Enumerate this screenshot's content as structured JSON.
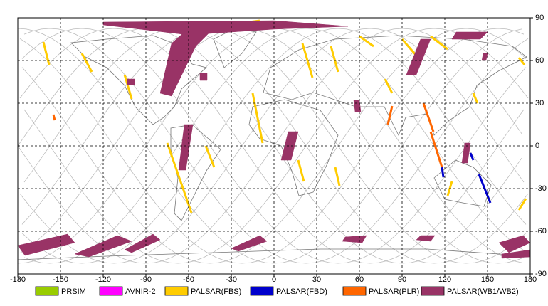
{
  "chart_data": {
    "type": "map",
    "xlim": [
      -180,
      180
    ],
    "ylim": [
      -90,
      90
    ],
    "xticks": [
      -180,
      -150,
      -120,
      -90,
      -60,
      -30,
      0,
      30,
      60,
      90,
      120,
      150,
      180
    ],
    "yticks": [
      -90,
      -60,
      -30,
      0,
      30,
      60,
      90
    ],
    "grid": true,
    "series": [
      {
        "name": "PRSIM",
        "color": "#99cc00"
      },
      {
        "name": "AVNIR-2",
        "color": "#ff00ff"
      },
      {
        "name": "PALSAR(FBS)",
        "color": "#ffcc00",
        "tracks": [
          {
            "lon": [
              -55,
              -10
            ],
            "lat": [
              82,
              88
            ]
          },
          {
            "lon": [
              -70,
              -15
            ],
            "lat": [
              80,
              87
            ]
          },
          {
            "lon": [
              -162,
              -158
            ],
            "lat": [
              73,
              57
            ]
          },
          {
            "lon": [
              -135,
              -128
            ],
            "lat": [
              65,
              52
            ]
          },
          {
            "lon": [
              -105,
              -100
            ],
            "lat": [
              50,
              33
            ]
          },
          {
            "lon": [
              -75,
              -58
            ],
            "lat": [
              2,
              -47
            ]
          },
          {
            "lon": [
              -48,
              -42
            ],
            "lat": [
              0,
              -15
            ]
          },
          {
            "lon": [
              -15,
              -8
            ],
            "lat": [
              37,
              2
            ]
          },
          {
            "lon": [
              20,
              27
            ],
            "lat": [
              72,
              48
            ]
          },
          {
            "lon": [
              40,
              45
            ],
            "lat": [
              70,
              52
            ]
          },
          {
            "lon": [
              43,
              46
            ],
            "lat": [
              -15,
              -28
            ]
          },
          {
            "lon": [
              17,
              21
            ],
            "lat": [
              -10,
              -25
            ]
          },
          {
            "lon": [
              60,
              70
            ],
            "lat": [
              77,
              70
            ]
          },
          {
            "lon": [
              78,
              83
            ],
            "lat": [
              47,
              37
            ]
          },
          {
            "lon": [
              90,
              103
            ],
            "lat": [
              75,
              60
            ]
          },
          {
            "lon": [
              110,
              122
            ],
            "lat": [
              77,
              68
            ]
          },
          {
            "lon": [
              140,
              143
            ],
            "lat": [
              37,
              30
            ]
          },
          {
            "lon": [
              172,
              176
            ],
            "lat": [
              62,
              57
            ]
          },
          {
            "lon": [
              125,
              122
            ],
            "lat": [
              -25,
              -35
            ]
          },
          {
            "lon": [
              177,
              172
            ],
            "lat": [
              -37,
              -45
            ]
          }
        ]
      },
      {
        "name": "PALSAR(FBD)",
        "color": "#0000cc",
        "tracks": [
          {
            "lon": [
              118,
              119
            ],
            "lat": [
              -15,
              -22
            ]
          },
          {
            "lon": [
              144,
              152
            ],
            "lat": [
              -20,
              -40
            ]
          },
          {
            "lon": [
              138,
              140
            ],
            "lat": [
              -5,
              -10
            ]
          }
        ]
      },
      {
        "name": "PALSAR(PLR)",
        "color": "#ff6600",
        "tracks": [
          {
            "lon": [
              105,
              112
            ],
            "lat": [
              30,
              10
            ]
          },
          {
            "lon": [
              110,
              118
            ],
            "lat": [
              10,
              -15
            ]
          },
          {
            "lon": [
              -155,
              -154
            ],
            "lat": [
              22,
              18
            ]
          },
          {
            "lon": [
              83,
              80
            ],
            "lat": [
              28,
              15
            ]
          }
        ]
      },
      {
        "name": "PALSAR(WB1/WB2)",
        "color": "#993366",
        "swaths": [
          {
            "lon": [
              -120,
              0,
              52,
              0,
              -60,
              -120
            ],
            "lat": [
              87,
              88,
              84,
              82,
              78,
              85
            ]
          },
          {
            "lon": [
              -80,
              -72,
              -55,
              -40,
              -55,
              -72
            ],
            "lat": [
              37,
              35,
              70,
              85,
              87,
              72
            ]
          },
          {
            "lon": [
              -63,
              -57,
              -62,
              -67
            ],
            "lat": [
              15,
              15,
              -17,
              -17
            ]
          },
          {
            "lon": [
              10,
              17,
              12,
              5
            ],
            "lat": [
              10,
              10,
              -10,
              -10
            ]
          },
          {
            "lon": [
              93,
              100,
              110,
              103
            ],
            "lat": [
              50,
              50,
              75,
              75
            ]
          },
          {
            "lon": [
              128,
              150,
              145,
              125
            ],
            "lat": [
              80,
              80,
              75,
              75
            ]
          },
          {
            "lon": [
              147,
              150,
              149,
              146
            ],
            "lat": [
              65,
              65,
              60,
              60
            ]
          },
          {
            "lon": [
              56,
              60,
              61,
              57
            ],
            "lat": [
              32,
              32,
              24,
              24
            ]
          },
          {
            "lon": [
              -52,
              -47,
              -47,
              -52
            ],
            "lat": [
              51,
              51,
              46,
              46
            ]
          },
          {
            "lon": [
              -103,
              -98,
              -98,
              -103
            ],
            "lat": [
              47,
              47,
              43,
              43
            ]
          },
          {
            "lon": [
              134,
              138,
              136,
              132
            ],
            "lat": [
              2,
              2,
              -12,
              -12
            ]
          },
          {
            "lon": [
              -180,
              -145,
              -140,
              -175
            ],
            "lat": [
              -70,
              -62,
              -68,
              -77
            ]
          },
          {
            "lon": [
              -140,
              -110,
              -100,
              -130
            ],
            "lat": [
              -76,
              -63,
              -67,
              -78
            ]
          },
          {
            "lon": [
              -105,
              -85,
              -80,
              -100
            ],
            "lat": [
              -73,
              -62,
              -66,
              -75
            ]
          },
          {
            "lon": [
              -30,
              -10,
              -5,
              -25
            ],
            "lat": [
              -72,
              -63,
              -67,
              -74
            ]
          },
          {
            "lon": [
              50,
              65,
              62,
              48
            ],
            "lat": [
              -64,
              -63,
              -68,
              -67
            ]
          },
          {
            "lon": [
              103,
              113,
              110,
              100
            ],
            "lat": [
              -63,
              -63,
              -67,
              -66
            ]
          },
          {
            "lon": [
              158,
              175,
              180,
              165
            ],
            "lat": [
              -68,
              -63,
              -68,
              -75
            ]
          },
          {
            "lon": [
              160,
              180,
              180,
              160
            ],
            "lat": [
              -76,
              -73,
              -78,
              -79
            ]
          }
        ]
      }
    ]
  }
}
